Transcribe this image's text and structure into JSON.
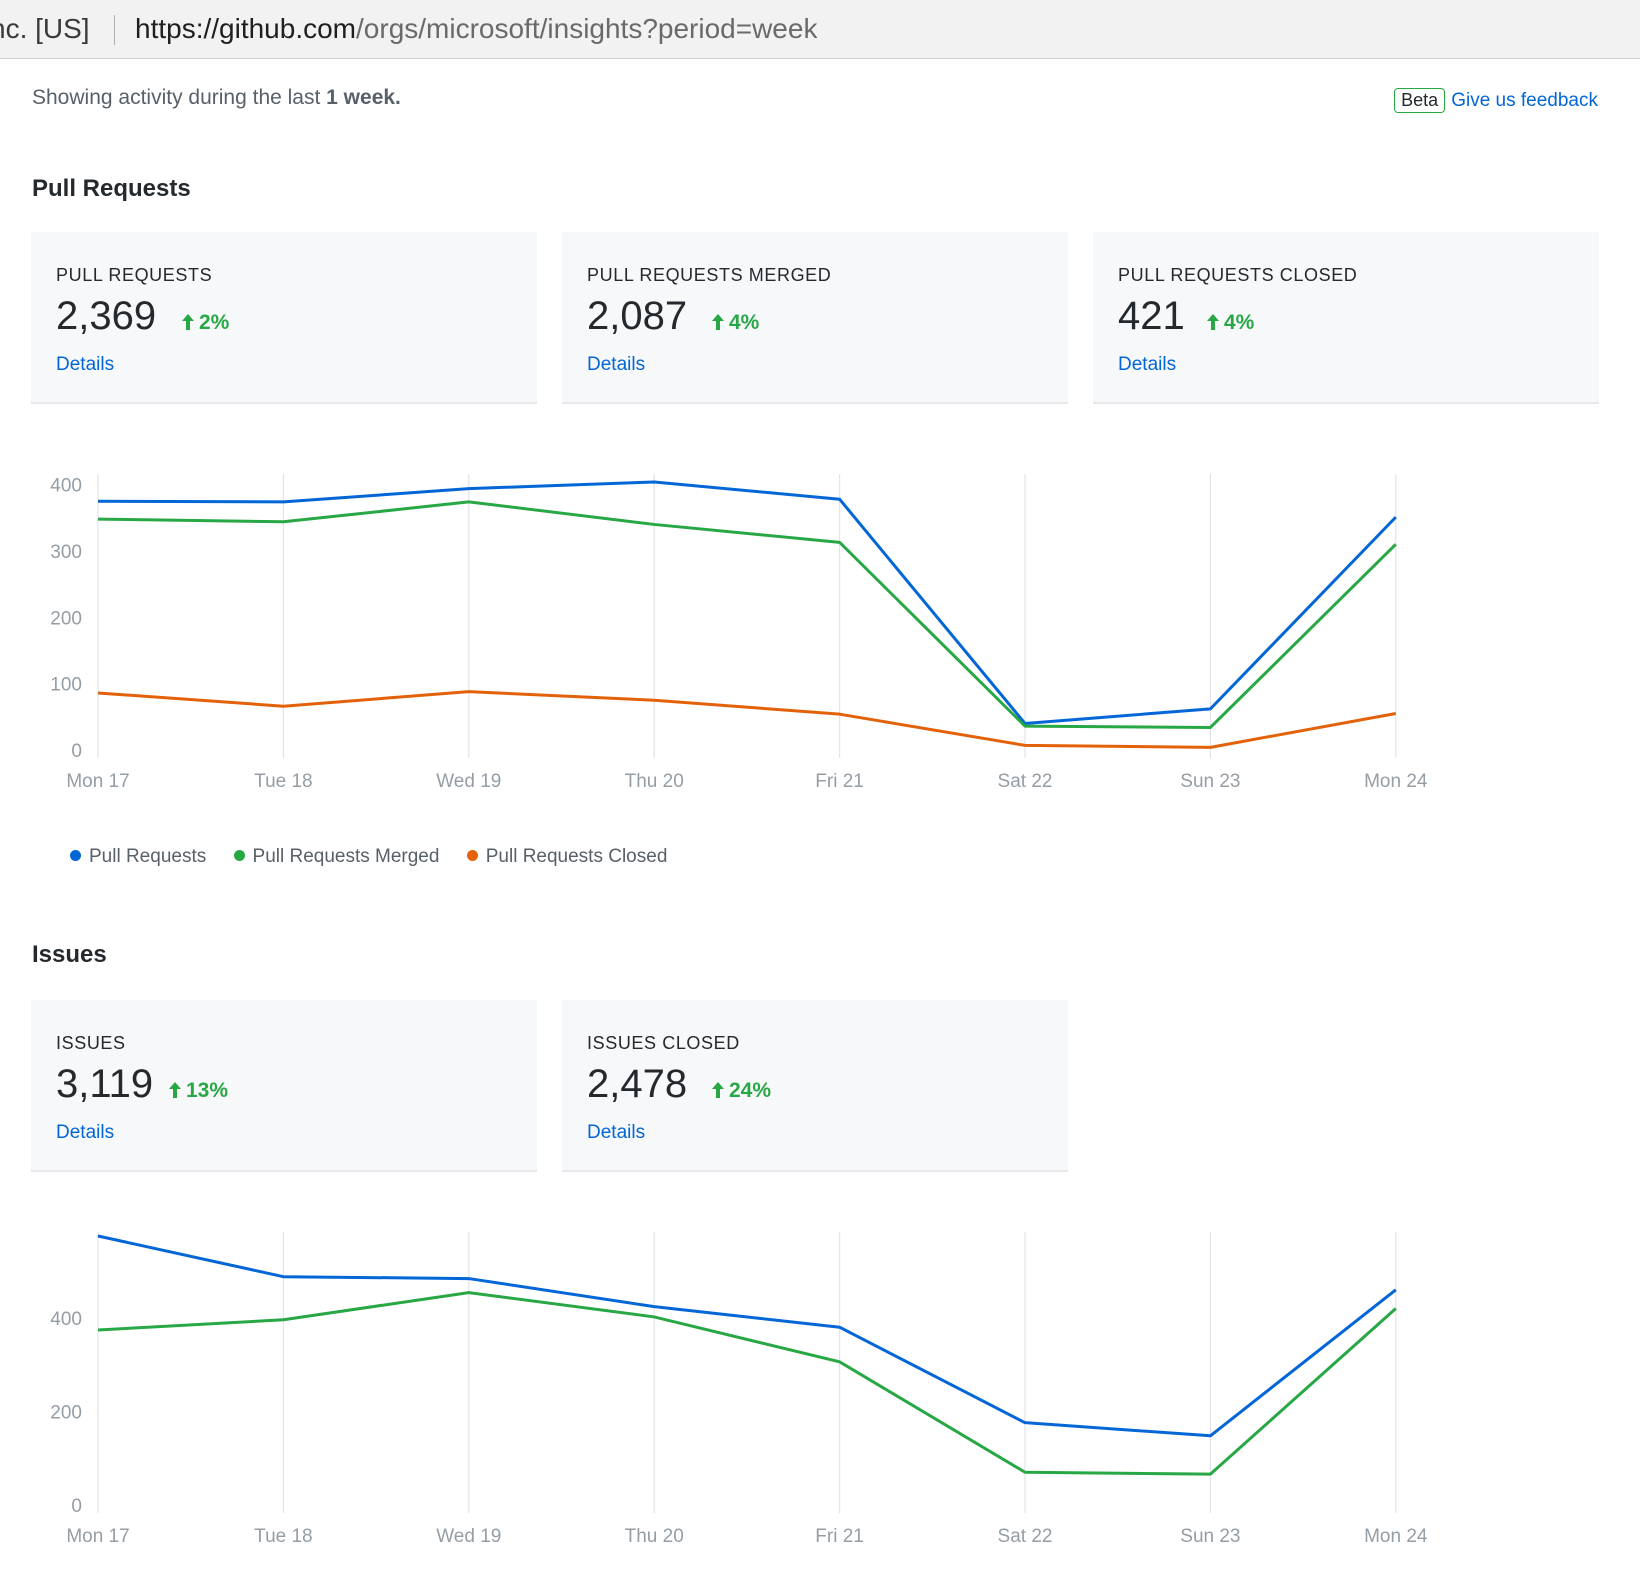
{
  "address_bar": {
    "owner": "nc. [US]",
    "url_host": "https://github.com",
    "url_path": "/orgs/microsoft/insights?period=week"
  },
  "activity": {
    "prefix": "Showing activity during the last",
    "period": "1 week."
  },
  "feedback": {
    "badge": "Beta",
    "link": "Give us feedback"
  },
  "pull_requests_section": {
    "title": "Pull Requests",
    "cards": [
      {
        "label": "PULL REQUESTS",
        "value": "2,369",
        "change": "2%",
        "details": "Details"
      },
      {
        "label": "PULL REQUESTS MERGED",
        "value": "2,087",
        "change": "4%",
        "details": "Details"
      },
      {
        "label": "PULL REQUESTS CLOSED",
        "value": "421",
        "change": "4%",
        "details": "Details"
      }
    ],
    "legend": [
      "Pull Requests",
      "Pull Requests Merged",
      "Pull Requests Closed"
    ]
  },
  "issues_section": {
    "title": "Issues",
    "cards": [
      {
        "label": "ISSUES",
        "value": "3,119",
        "change": "13%",
        "details": "Details"
      },
      {
        "label": "ISSUES CLOSED",
        "value": "2,478",
        "change": "24%",
        "details": "Details"
      }
    ]
  },
  "colors": {
    "blue": "#0366d6",
    "green": "#28a745",
    "orange": "#e36209",
    "up_arrow": "#28a745"
  },
  "chart_data": [
    {
      "type": "line",
      "x": [
        "Mon 17",
        "Tue 18",
        "Wed 19",
        "Thu 20",
        "Fri 21",
        "Sat 22",
        "Sun 23",
        "Mon 24"
      ],
      "yticks": [
        0,
        100,
        200,
        300,
        400
      ],
      "ylim": [
        0,
        410
      ],
      "legend": "bottom-left",
      "series": [
        {
          "name": "Pull Requests",
          "color": "#0366d6",
          "values": [
            375,
            374,
            394,
            404,
            378,
            40,
            62,
            351
          ]
        },
        {
          "name": "Pull Requests Merged",
          "color": "#28a745",
          "values": [
            348,
            344,
            374,
            340,
            313,
            36,
            34,
            310
          ]
        },
        {
          "name": "Pull Requests Closed",
          "color": "#e36209",
          "values": [
            86,
            66,
            88,
            75,
            54,
            7,
            4,
            55
          ]
        }
      ]
    },
    {
      "type": "line",
      "x": [
        "Mon 17",
        "Tue 18",
        "Wed 19",
        "Thu 20",
        "Fri 21",
        "Sat 22",
        "Sun 23",
        "Mon 24"
      ],
      "yticks": [
        0,
        200,
        400
      ],
      "ylim": [
        0,
        575
      ],
      "series": [
        {
          "color": "#0366d6",
          "values": [
            575,
            488,
            484,
            424,
            380,
            176,
            148,
            460
          ]
        },
        {
          "color": "#28a745",
          "values": [
            374,
            396,
            454,
            402,
            306,
            70,
            66,
            420
          ]
        }
      ]
    }
  ]
}
